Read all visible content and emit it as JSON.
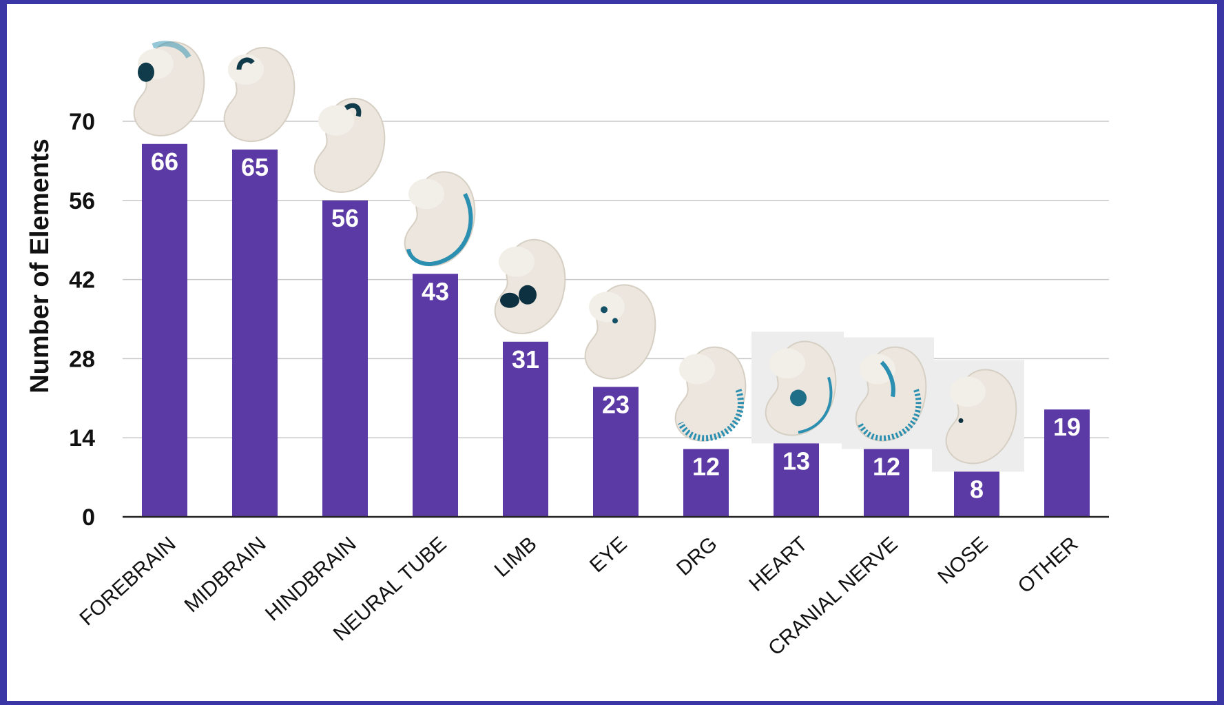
{
  "colors": {
    "frame": "#3b36a6",
    "background": "#ffffff",
    "bar": "#5c3aa6",
    "grid": "#c8c8c8",
    "text": "#111111",
    "value_text": "#ffffff",
    "stain_blue": "#2a8fb0",
    "embryo": "#ece6de"
  },
  "chart_data": {
    "type": "bar",
    "ylabel": "Number of Elements",
    "xlabel": "",
    "ylim": [
      0,
      70
    ],
    "yticks": [
      0,
      14,
      28,
      42,
      56,
      70
    ],
    "grid": true,
    "categories": [
      "FOREBRAIN",
      "MIDBRAIN",
      "HINDBRAIN",
      "NEURAL TUBE",
      "LIMB",
      "EYE",
      "DRG",
      "HEART",
      "CRANIAL NERVE",
      "NOSE",
      "OTHER"
    ],
    "values": [
      66,
      65,
      56,
      43,
      31,
      23,
      12,
      13,
      12,
      8,
      19
    ],
    "value_labels": [
      "66",
      "65",
      "56",
      "43",
      "31",
      "23",
      "12",
      "13",
      "12",
      "8",
      "19"
    ],
    "images": [
      {
        "category": "FOREBRAIN",
        "icon": "embryo-forebrain-stain-icon",
        "stain": "forebrain"
      },
      {
        "category": "MIDBRAIN",
        "icon": "embryo-midbrain-stain-icon",
        "stain": "midbrain"
      },
      {
        "category": "HINDBRAIN",
        "icon": "embryo-hindbrain-stain-icon",
        "stain": "hindbrain"
      },
      {
        "category": "NEURAL TUBE",
        "icon": "embryo-neural-tube-stain-icon",
        "stain": "neural-tube"
      },
      {
        "category": "LIMB",
        "icon": "embryo-limb-stain-icon",
        "stain": "limb"
      },
      {
        "category": "EYE",
        "icon": "embryo-eye-stain-icon",
        "stain": "eye"
      },
      {
        "category": "DRG",
        "icon": "embryo-drg-stain-icon",
        "stain": "drg"
      },
      {
        "category": "HEART",
        "icon": "embryo-heart-stain-icon",
        "stain": "heart"
      },
      {
        "category": "CRANIAL NERVE",
        "icon": "embryo-cranial-nerve-stain-icon",
        "stain": "cranial-nerve"
      },
      {
        "category": "NOSE",
        "icon": "embryo-nose-stain-icon",
        "stain": "nose"
      }
    ]
  }
}
